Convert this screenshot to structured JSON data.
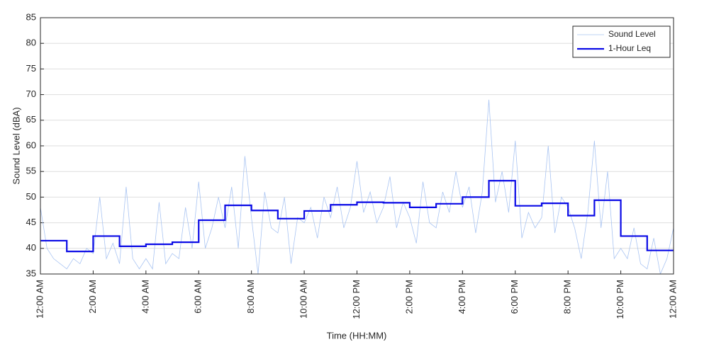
{
  "chart_data": {
    "type": "line",
    "xlabel": "Time (HH:MM)",
    "ylabel": "Sound Level (dBA)",
    "xlim": [
      0,
      1440
    ],
    "ylim": [
      35,
      85
    ],
    "yticks": [
      35,
      40,
      45,
      50,
      55,
      60,
      65,
      70,
      75,
      80,
      85
    ],
    "xticks": [
      {
        "value": 0,
        "label": "12:00 AM"
      },
      {
        "value": 120,
        "label": "2:00 AM"
      },
      {
        "value": 240,
        "label": "4:00 AM"
      },
      {
        "value": 360,
        "label": "6:00 AM"
      },
      {
        "value": 480,
        "label": "8:00 AM"
      },
      {
        "value": 600,
        "label": "10:00 AM"
      },
      {
        "value": 720,
        "label": "12:00 PM"
      },
      {
        "value": 840,
        "label": "2:00 PM"
      },
      {
        "value": 960,
        "label": "4:00 PM"
      },
      {
        "value": 1080,
        "label": "6:00 PM"
      },
      {
        "value": 1200,
        "label": "8:00 PM"
      },
      {
        "value": 1320,
        "label": "10:00 PM"
      },
      {
        "value": 1440,
        "label": "12:00 AM"
      }
    ],
    "grid": true,
    "legend": "upper right",
    "series": [
      {
        "name": "Sound Level",
        "color": "#a9c4f2",
        "width": 0.8,
        "x": [
          0,
          15,
          30,
          45,
          60,
          75,
          90,
          105,
          120,
          135,
          150,
          165,
          180,
          195,
          210,
          225,
          240,
          255,
          270,
          285,
          300,
          315,
          330,
          345,
          360,
          375,
          390,
          405,
          420,
          435,
          450,
          465,
          480,
          495,
          510,
          525,
          540,
          555,
          570,
          585,
          600,
          615,
          630,
          645,
          660,
          675,
          690,
          705,
          720,
          735,
          750,
          765,
          780,
          795,
          810,
          825,
          840,
          855,
          870,
          885,
          900,
          915,
          930,
          945,
          960,
          975,
          990,
          1005,
          1020,
          1035,
          1050,
          1065,
          1080,
          1095,
          1110,
          1125,
          1140,
          1155,
          1170,
          1185,
          1200,
          1215,
          1230,
          1245,
          1260,
          1275,
          1290,
          1305,
          1320,
          1335,
          1350,
          1365,
          1380,
          1395,
          1410,
          1425,
          1440
        ],
        "values": [
          48,
          40,
          38,
          37,
          36,
          38,
          37,
          40,
          39,
          50,
          38,
          41,
          37,
          52,
          38,
          36,
          38,
          36,
          49,
          37,
          39,
          38,
          48,
          40,
          53,
          40,
          44,
          50,
          44,
          52,
          40,
          58,
          46,
          35,
          51,
          44,
          43,
          50,
          37,
          46,
          45,
          48,
          42,
          50,
          46,
          52,
          44,
          48,
          57,
          47,
          51,
          45,
          48,
          54,
          44,
          49,
          46,
          41,
          53,
          45,
          44,
          51,
          47,
          55,
          48,
          52,
          43,
          51,
          69,
          49,
          55,
          47,
          61,
          42,
          47,
          44,
          46,
          60,
          43,
          50,
          48,
          44,
          38,
          47,
          61,
          44,
          55,
          38,
          40,
          38,
          44,
          37,
          36,
          42,
          35,
          38,
          44
        ]
      },
      {
        "name": "1-Hour Leq",
        "color": "#0a0ae6",
        "width": 2.2,
        "step": true,
        "x": [
          0,
          60,
          120,
          180,
          240,
          300,
          360,
          420,
          480,
          540,
          600,
          660,
          720,
          780,
          840,
          900,
          960,
          1020,
          1080,
          1140,
          1200,
          1260,
          1320,
          1380
        ],
        "values": [
          41.5,
          39.4,
          42.4,
          40.4,
          40.8,
          41.2,
          45.5,
          48.4,
          47.4,
          45.8,
          47.3,
          48.5,
          49.0,
          48.9,
          48.0,
          48.7,
          50.0,
          53.2,
          48.3,
          48.8,
          46.4,
          49.4,
          42.4,
          39.6
        ]
      }
    ]
  }
}
